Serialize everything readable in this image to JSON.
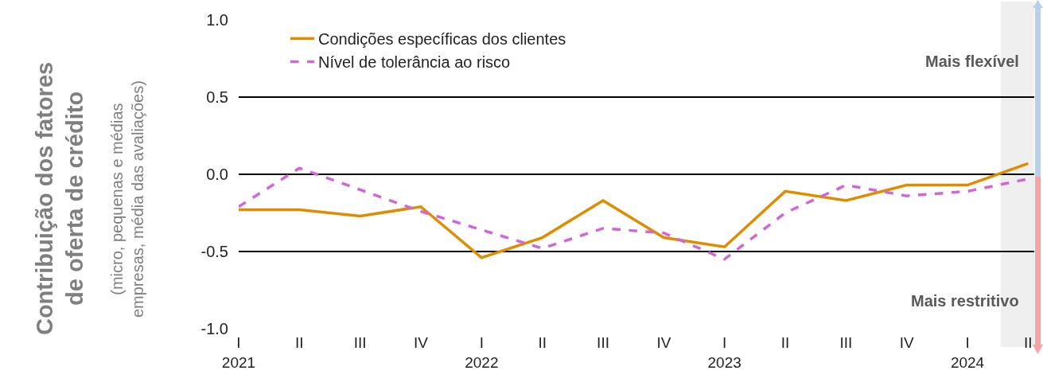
{
  "chart_data": {
    "type": "line",
    "ylabel": "Contribuição dos fatores\nde oferta de crédito",
    "categories": [
      "I\n2021",
      "II",
      "III",
      "IV",
      "I\n2022",
      "II",
      "III",
      "IV",
      "I\n2023",
      "II",
      "III",
      "IV",
      "I\n2024",
      "II"
    ],
    "series": [
      {
        "name": "Condições específicas dos clientes",
        "color": "#e08c00",
        "line_style": "solid",
        "values": [
          -0.23,
          -0.23,
          -0.27,
          -0.21,
          -0.54,
          -0.41,
          -0.17,
          -0.41,
          -0.47,
          -0.11,
          -0.17,
          -0.07,
          -0.07,
          0.07
        ]
      },
      {
        "name": "Nível de tolerância ao risco",
        "color": "#d166d8",
        "line_style": "dashed",
        "values": [
          -0.21,
          0.04,
          -0.1,
          -0.24,
          -0.36,
          -0.48,
          -0.35,
          -0.38,
          -0.55,
          -0.25,
          -0.07,
          -0.14,
          -0.11,
          -0.03
        ]
      }
    ],
    "annotations": [
      "(micro, pequenas e médias\nempresas, média das avaliações)",
      "Mais flexível",
      "Mais restritivo"
    ],
    "ylim": [
      -1.0,
      1.0
    ],
    "yticks": [
      {
        "value": -1,
        "label": "-1.0"
      },
      {
        "value": -0.5,
        "label": "-0.5"
      },
      {
        "value": 0,
        "label": "0.0"
      },
      {
        "value": 0.5,
        "label": "0.5"
      },
      {
        "value": 1,
        "label": "1.0"
      }
    ],
    "grid": "y",
    "legend": "top left",
    "marker": "none"
  }
}
